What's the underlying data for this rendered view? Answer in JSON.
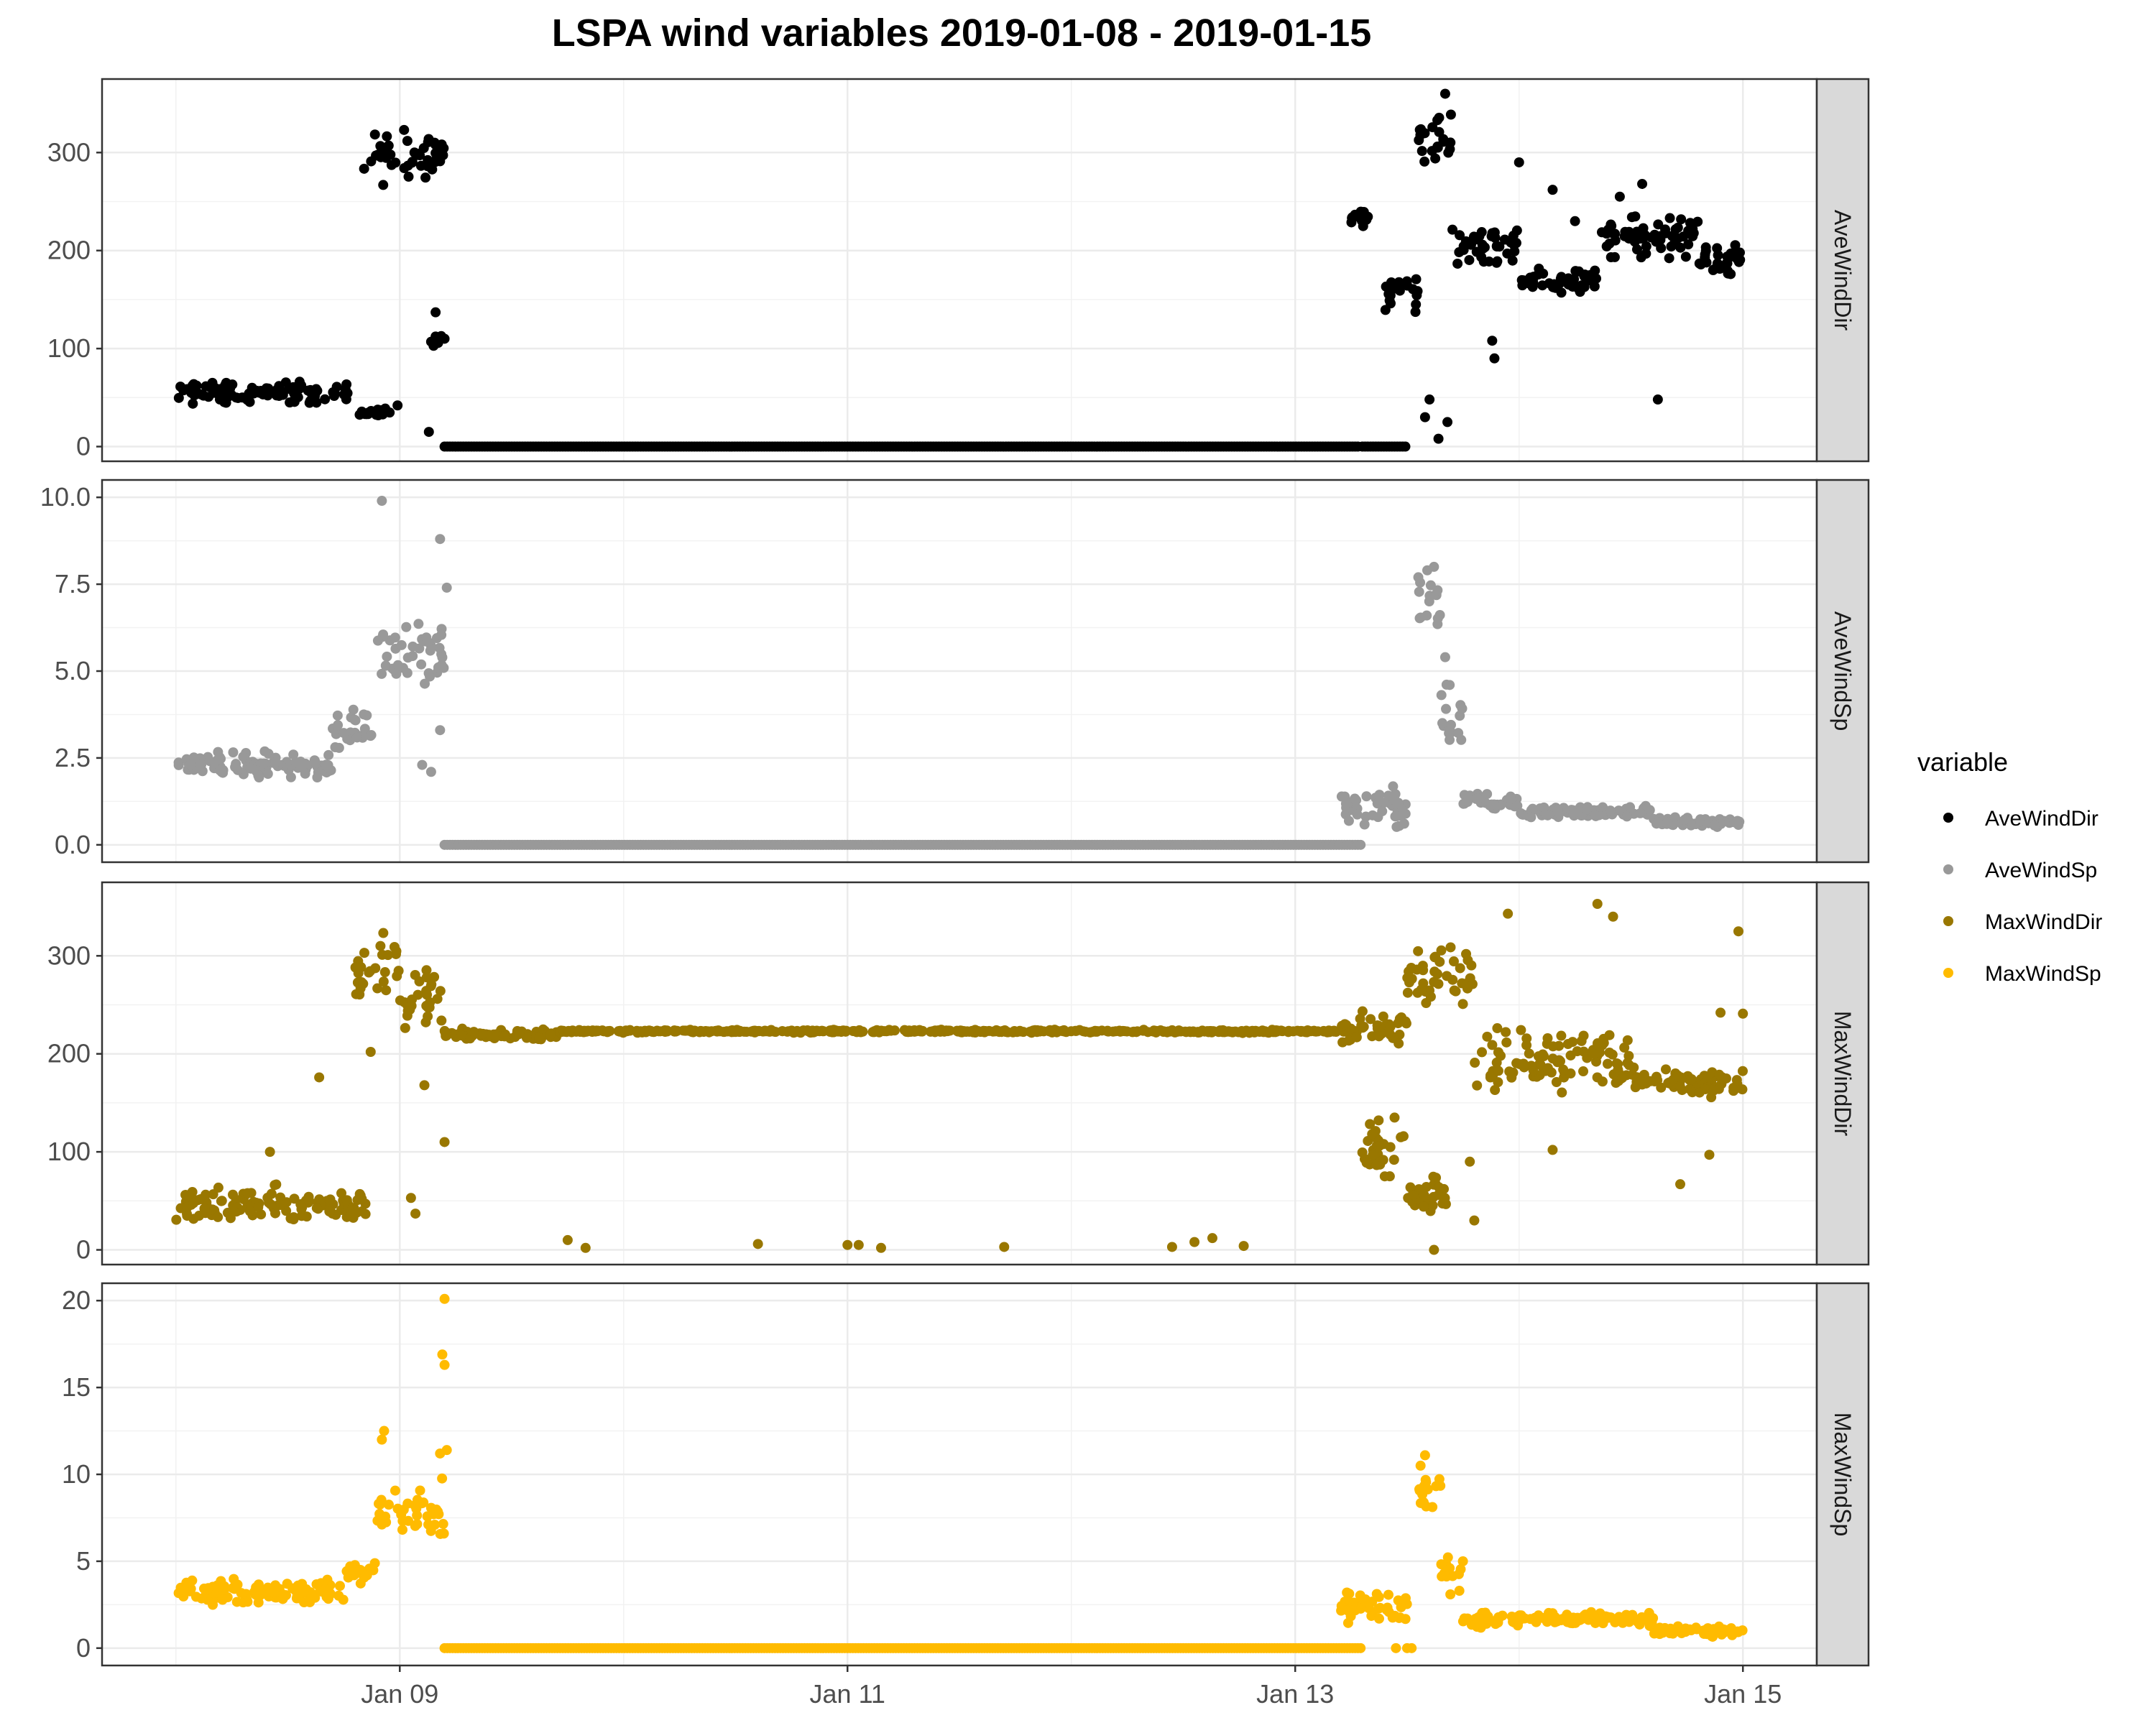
{
  "chart_data": {
    "type": "scatter",
    "title": "LSPA wind variables 2019-01-08 - 2019-01-15",
    "xlabel": "",
    "ylabel": "",
    "x_ticks": [
      "Jan 09",
      "Jan 11",
      "Jan 13",
      "Jan 15"
    ],
    "x_tick_values": [
      1,
      3,
      5,
      7
    ],
    "x_range_days": [
      -0.33,
      7.33
    ],
    "x_units": "days after 2019-01-08 00:00",
    "grid": true,
    "legend": {
      "title": "variable",
      "position": "right",
      "entries": [
        "AveWindDir",
        "AveWindSp",
        "MaxWindDir",
        "MaxWindSp"
      ]
    },
    "panels": [
      {
        "name": "AveWindDir",
        "color": "#000000",
        "ylim": [
          -15,
          375
        ],
        "y_ticks": [
          0,
          100,
          200,
          300
        ],
        "y_tick_labels": [
          "0",
          "100",
          "200",
          "300"
        ],
        "segments": [
          {
            "from": 0,
            "to": 0.78,
            "base": 55,
            "noise": 15
          },
          {
            "from": 0.82,
            "to": 0.96,
            "base": 35,
            "noise": 6
          },
          {
            "from": 0.84,
            "to": 1.2,
            "base": 295,
            "noise": 35
          },
          {
            "from": 1.15,
            "to": 1.19,
            "base": 110,
            "noise": 20
          },
          {
            "from": 1.2,
            "to": 5.28,
            "base": 0,
            "noise": 0
          },
          {
            "from": 5.3,
            "to": 5.5,
            "base": 0,
            "noise": 0
          },
          {
            "from": 5.25,
            "to": 5.35,
            "base": 235,
            "noise": 12
          },
          {
            "from": 5.4,
            "to": 5.55,
            "base": 160,
            "noise": 30
          },
          {
            "from": 5.55,
            "to": 5.7,
            "base": 310,
            "noise": 45
          },
          {
            "from": 5.7,
            "to": 6.0,
            "base": 205,
            "noise": 30
          },
          {
            "from": 6.0,
            "to": 6.35,
            "base": 170,
            "noise": 15
          },
          {
            "from": 6.35,
            "to": 6.8,
            "base": 215,
            "noise": 30
          },
          {
            "from": 6.8,
            "to": 7.0,
            "base": 190,
            "noise": 20
          }
        ],
        "points": [
          [
            0.99,
            42
          ],
          [
            1.13,
            15
          ],
          [
            1.16,
            137
          ],
          [
            1.14,
            107
          ],
          [
            1.2,
            110
          ],
          [
            5.58,
            30
          ],
          [
            5.6,
            48
          ],
          [
            5.64,
            8
          ],
          [
            5.68,
            25
          ],
          [
            5.67,
            360
          ],
          [
            5.88,
            108
          ],
          [
            5.89,
            90
          ],
          [
            6.0,
            290
          ],
          [
            6.15,
            262
          ],
          [
            6.62,
            48
          ],
          [
            6.25,
            230
          ],
          [
            6.45,
            255
          ],
          [
            6.55,
            268
          ]
        ]
      },
      {
        "name": "AveWindSp",
        "color": "#999999",
        "ylim": [
          -0.5,
          10.5
        ],
        "y_ticks": [
          0,
          2.5,
          5,
          7.5,
          10
        ],
        "y_tick_labels": [
          "0.0",
          "2.5",
          "5.0",
          "7.5",
          "10.0"
        ],
        "segments": [
          {
            "from": 0,
            "to": 0.7,
            "base": 2.3,
            "noise": 0.5
          },
          {
            "from": 0.7,
            "to": 0.9,
            "base": 3.2,
            "noise": 0.8
          },
          {
            "from": 0.9,
            "to": 1.2,
            "base": 5.5,
            "noise": 1.4
          },
          {
            "from": 1.2,
            "to": 5.3,
            "base": 0,
            "noise": 0
          },
          {
            "from": 5.2,
            "to": 5.5,
            "base": 1.0,
            "noise": 0.9
          },
          {
            "from": 5.55,
            "to": 5.65,
            "base": 6.8,
            "noise": 1.0
          },
          {
            "from": 5.65,
            "to": 5.75,
            "base": 3.5,
            "noise": 1.5
          },
          {
            "from": 5.75,
            "to": 6.0,
            "base": 1.2,
            "noise": 0.4
          },
          {
            "from": 6.0,
            "to": 6.6,
            "base": 0.95,
            "noise": 0.25
          },
          {
            "from": 6.6,
            "to": 7.0,
            "base": 0.65,
            "noise": 0.2
          }
        ],
        "points": [
          [
            0.92,
            9.9
          ],
          [
            1.18,
            8.8
          ],
          [
            1.21,
            7.4
          ],
          [
            1.18,
            3.3
          ],
          [
            5.59,
            7.9
          ],
          [
            5.62,
            8.0
          ],
          [
            5.55,
            7.7
          ],
          [
            5.67,
            5.4
          ],
          [
            5.69,
            4.6
          ],
          [
            1.1,
            2.3
          ],
          [
            1.14,
            2.1
          ]
        ]
      },
      {
        "name": "MaxWindDir",
        "color": "#997700",
        "ylim": [
          -15,
          375
        ],
        "y_ticks": [
          0,
          100,
          200,
          300
        ],
        "y_tick_labels": [
          "0",
          "100",
          "200",
          "300"
        ],
        "segments": [
          {
            "from": 0,
            "to": 0.85,
            "base": 45,
            "noise": 25
          },
          {
            "from": 0.8,
            "to": 1.0,
            "base": 290,
            "noise": 45
          },
          {
            "from": 1.0,
            "to": 1.2,
            "base": 255,
            "noise": 40
          },
          {
            "from": 1.2,
            "to": 1.7,
            "base": 220,
            "noise": 8
          },
          {
            "from": 1.7,
            "to": 5.3,
            "base": 223,
            "noise": 2
          },
          {
            "from": 5.2,
            "to": 5.5,
            "base": 225,
            "noise": 25
          },
          {
            "from": 5.3,
            "to": 5.5,
            "base": 110,
            "noise": 40
          },
          {
            "from": 5.5,
            "to": 5.8,
            "base": 280,
            "noise": 40
          },
          {
            "from": 5.5,
            "to": 5.7,
            "base": 60,
            "noise": 30
          },
          {
            "from": 5.8,
            "to": 6.5,
            "base": 195,
            "noise": 45
          },
          {
            "from": 6.5,
            "to": 7.0,
            "base": 170,
            "noise": 20
          }
        ],
        "points": [
          [
            0.42,
            100
          ],
          [
            0.64,
            176
          ],
          [
            0.87,
            202
          ],
          [
            1.05,
            53
          ],
          [
            1.07,
            37
          ],
          [
            1.11,
            168
          ],
          [
            1.2,
            110
          ],
          [
            1.75,
            10
          ],
          [
            1.83,
            2
          ],
          [
            2.6,
            6
          ],
          [
            3.0,
            5
          ],
          [
            3.05,
            5
          ],
          [
            3.15,
            2
          ],
          [
            3.7,
            3
          ],
          [
            4.45,
            3
          ],
          [
            4.55,
            8
          ],
          [
            4.63,
            12
          ],
          [
            4.77,
            4
          ],
          [
            5.4,
            75
          ],
          [
            5.62,
            0
          ],
          [
            5.78,
            90
          ],
          [
            5.8,
            30
          ],
          [
            5.95,
            343
          ],
          [
            6.15,
            102
          ],
          [
            6.35,
            353
          ],
          [
            6.72,
            67
          ],
          [
            6.85,
            97
          ],
          [
            6.98,
            325
          ],
          [
            7.0,
            241
          ],
          [
            6.9,
            242
          ],
          [
            6.42,
            340
          ]
        ]
      },
      {
        "name": "MaxWindSp",
        "color": "#FFBB00",
        "ylim": [
          -1,
          21
        ],
        "y_ticks": [
          0,
          5,
          10,
          15,
          20
        ],
        "y_tick_labels": [
          "0",
          "5",
          "10",
          "15",
          "20"
        ],
        "segments": [
          {
            "from": 0,
            "to": 0.75,
            "base": 3.2,
            "noise": 0.9
          },
          {
            "from": 0.75,
            "to": 0.9,
            "base": 4.2,
            "noise": 1.2
          },
          {
            "from": 0.9,
            "to": 1.2,
            "base": 7.8,
            "noise": 2.5
          },
          {
            "from": 1.2,
            "to": 5.3,
            "base": 0,
            "noise": 0
          },
          {
            "from": 5.2,
            "to": 5.5,
            "base": 2.4,
            "noise": 1.2
          },
          {
            "from": 5.55,
            "to": 5.65,
            "base": 9.0,
            "noise": 1.5
          },
          {
            "from": 5.65,
            "to": 5.75,
            "base": 4.5,
            "noise": 2.0
          },
          {
            "from": 5.75,
            "to": 6.0,
            "base": 1.6,
            "noise": 0.6
          },
          {
            "from": 6.0,
            "to": 6.6,
            "base": 1.7,
            "noise": 0.6
          },
          {
            "from": 6.6,
            "to": 7.0,
            "base": 1.0,
            "noise": 0.4
          }
        ],
        "points": [
          [
            1.2,
            20.1
          ],
          [
            1.19,
            16.9
          ],
          [
            1.2,
            16.3
          ],
          [
            1.21,
            11.4
          ],
          [
            1.18,
            11.2
          ],
          [
            0.93,
            12.5
          ],
          [
            0.92,
            12.0
          ],
          [
            5.58,
            11.1
          ],
          [
            5.56,
            10.5
          ],
          [
            5.52,
            0
          ],
          [
            5.45,
            0
          ],
          [
            5.5,
            0
          ]
        ]
      }
    ]
  }
}
